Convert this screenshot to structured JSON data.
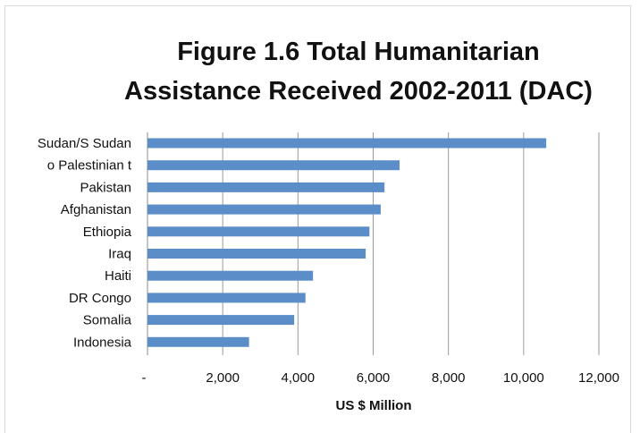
{
  "chart_data": {
    "type": "bar",
    "orientation": "horizontal",
    "title_line1": "Figure 1.6   Total Humanitarian",
    "title_line2": "Assistance Received 2002-2011 (DAC)",
    "xlabel": "US $ Million",
    "ylabel": "",
    "categories": [
      "Sudan/S Sudan",
      "o Palestinian t",
      "Pakistan",
      "Afghanistan",
      "Ethiopia",
      "Iraq",
      "Haiti",
      "DR Congo",
      "Somalia",
      "Indonesia"
    ],
    "values": [
      10600,
      6700,
      6300,
      6200,
      5900,
      5800,
      4400,
      4200,
      3900,
      2700
    ],
    "xlim": [
      0,
      12000
    ],
    "ticks": [
      0,
      2000,
      4000,
      6000,
      8000,
      10000,
      12000
    ],
    "tick_labels": [
      "-",
      "2,000",
      "4,000",
      "6,000",
      "8,000",
      "10,000",
      "12,000"
    ],
    "grid": "vertical",
    "legend": "none",
    "bar_color": "#5b8ec9"
  }
}
